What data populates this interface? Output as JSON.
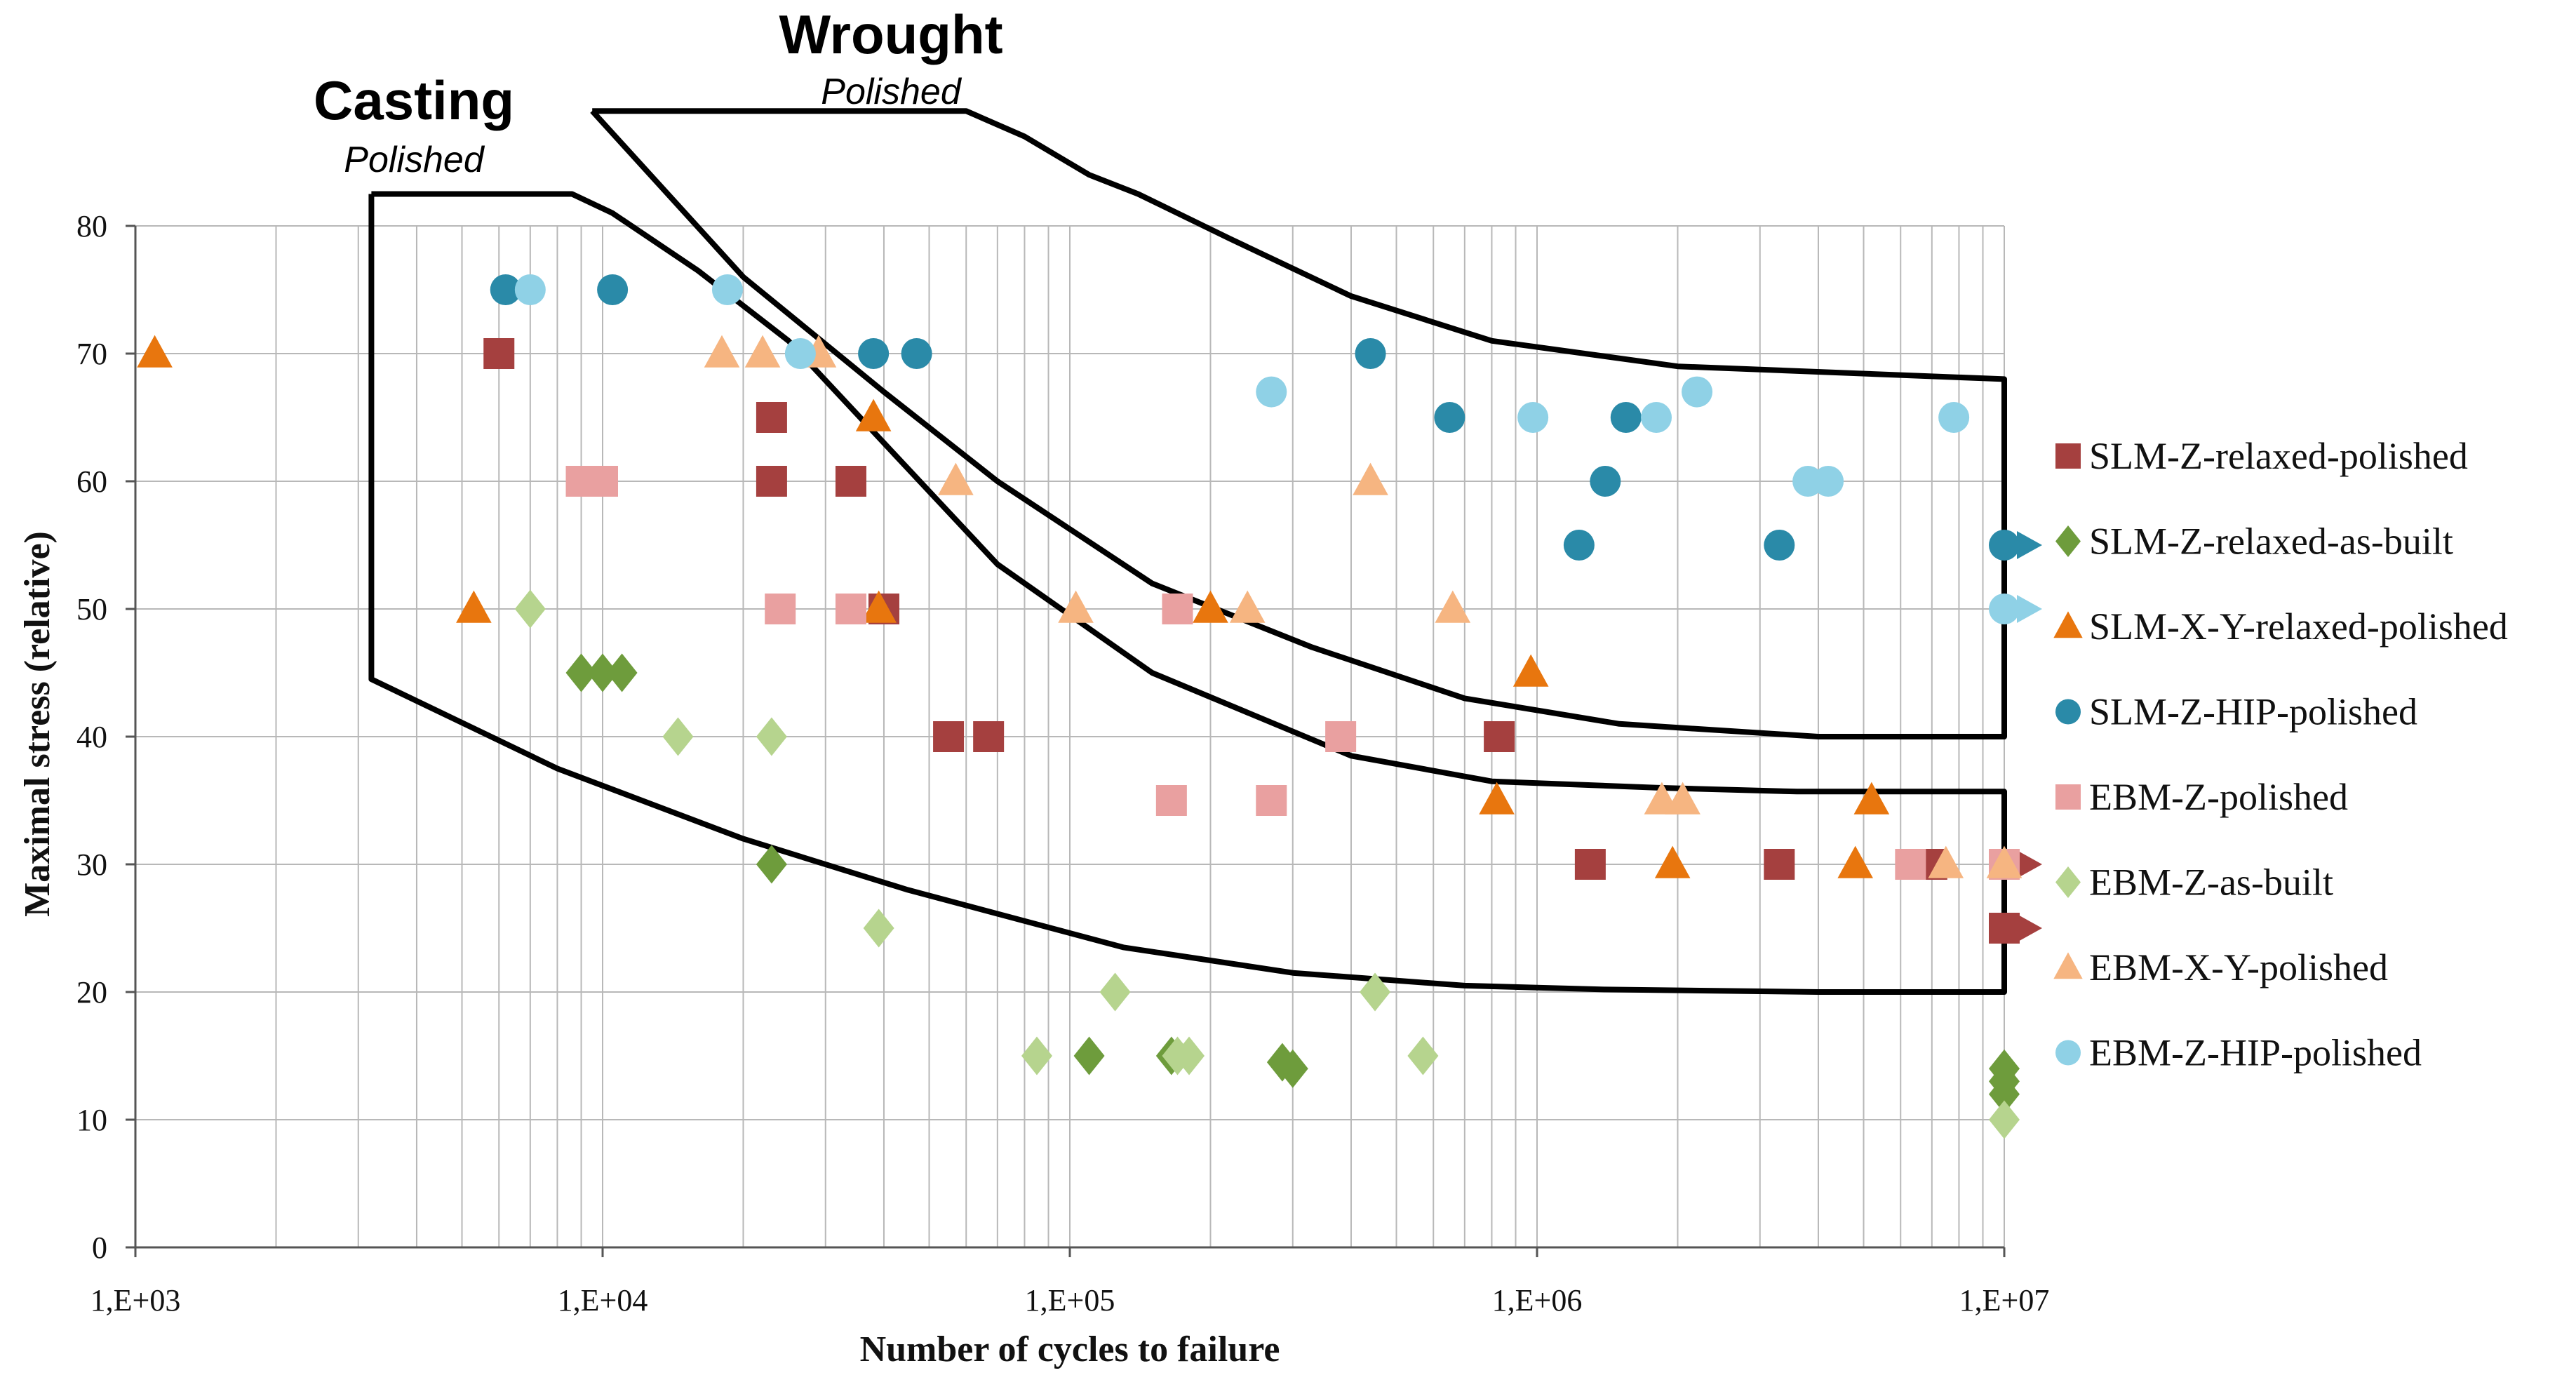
{
  "chart_data": {
    "type": "scatter",
    "title": "",
    "xlabel": "Number of cycles to failure",
    "ylabel": "Maximal stress (relative)",
    "x_scale": "log",
    "xlim": [
      1000,
      10000000
    ],
    "ylim": [
      0,
      80
    ],
    "x_ticks": [
      "1,E+03",
      "1,E+04",
      "1,E+05",
      "1,E+06",
      "1,E+07"
    ],
    "y_ticks": [
      "0",
      "10",
      "20",
      "30",
      "40",
      "50",
      "60",
      "70",
      "80"
    ],
    "grid": true,
    "legend_position": "right",
    "series": [
      {
        "name": "SLM-Z-relaxed-polished",
        "marker": "square",
        "color": "#a5403f",
        "points": [
          [
            6000,
            70
          ],
          [
            23000,
            65
          ],
          [
            23000,
            60
          ],
          [
            34000,
            60
          ],
          [
            40000,
            50
          ],
          [
            55000,
            40
          ],
          [
            67000,
            40
          ],
          [
            830000,
            40
          ],
          [
            1300000,
            30
          ],
          [
            3300000,
            30
          ],
          [
            7000000,
            30
          ],
          [
            10000000,
            30
          ],
          [
            10000000,
            25
          ]
        ],
        "runouts": [
          [
            10000000,
            30
          ],
          [
            10000000,
            25
          ]
        ]
      },
      {
        "name": "SLM-Z-relaxed-as-built",
        "marker": "diamond",
        "color": "#6e9c3c",
        "points": [
          [
            9000,
            45
          ],
          [
            10000,
            45
          ],
          [
            11000,
            45
          ],
          [
            23000,
            30
          ],
          [
            110000,
            15
          ],
          [
            165000,
            15
          ],
          [
            285000,
            14.5
          ],
          [
            300000,
            14
          ],
          [
            10000000,
            14
          ],
          [
            10000000,
            13
          ],
          [
            10000000,
            12
          ]
        ],
        "runouts": []
      },
      {
        "name": "SLM-X-Y-relaxed-polished",
        "marker": "triangle",
        "color": "#e8760e",
        "points": [
          [
            1100,
            70
          ],
          [
            5300,
            50
          ],
          [
            38000,
            65
          ],
          [
            39000,
            50
          ],
          [
            200000,
            50
          ],
          [
            820000,
            35
          ],
          [
            970000,
            45
          ],
          [
            1950000,
            30
          ],
          [
            4800000,
            30
          ],
          [
            5200000,
            35
          ]
        ],
        "runouts": []
      },
      {
        "name": "SLM-Z-HIP-polished",
        "marker": "circle",
        "color": "#2a8aa8",
        "points": [
          [
            6200,
            75
          ],
          [
            10500,
            75
          ],
          [
            38000,
            70
          ],
          [
            47000,
            70
          ],
          [
            440000,
            70
          ],
          [
            650000,
            65
          ],
          [
            1230000,
            55
          ],
          [
            1400000,
            60
          ],
          [
            1550000,
            65
          ],
          [
            3300000,
            55
          ],
          [
            10000000,
            55
          ]
        ],
        "runouts": [
          [
            10000000,
            55
          ]
        ]
      },
      {
        "name": "EBM-Z-polished",
        "marker": "square",
        "color": "#e9a0a0",
        "points": [
          [
            9000,
            60
          ],
          [
            10000,
            60
          ],
          [
            24000,
            50
          ],
          [
            34000,
            50
          ],
          [
            165000,
            35
          ],
          [
            170000,
            50
          ],
          [
            270000,
            35
          ],
          [
            380000,
            40
          ],
          [
            6300000,
            30
          ],
          [
            10000000,
            30
          ]
        ],
        "runouts": []
      },
      {
        "name": "EBM-Z-as-built",
        "marker": "diamond",
        "color": "#b6d48e",
        "points": [
          [
            7000,
            50
          ],
          [
            14500,
            40
          ],
          [
            23000,
            40
          ],
          [
            39000,
            25
          ],
          [
            85000,
            15
          ],
          [
            125000,
            20
          ],
          [
            170000,
            15
          ],
          [
            180000,
            15
          ],
          [
            450000,
            20
          ],
          [
            570000,
            15
          ],
          [
            10000000,
            10
          ]
        ],
        "runouts": []
      },
      {
        "name": "EBM-X-Y-polished",
        "marker": "triangle",
        "color": "#f6b581",
        "points": [
          [
            18000,
            70
          ],
          [
            22000,
            70
          ],
          [
            29000,
            70
          ],
          [
            57000,
            60
          ],
          [
            103000,
            50
          ],
          [
            240000,
            50
          ],
          [
            440000,
            60
          ],
          [
            660000,
            50
          ],
          [
            1850000,
            35
          ],
          [
            2050000,
            35
          ],
          [
            7500000,
            30
          ],
          [
            10000000,
            30
          ]
        ],
        "runouts": []
      },
      {
        "name": "EBM-Z-HIP-polished",
        "marker": "circle",
        "color": "#8fd1e6",
        "points": [
          [
            7000,
            75
          ],
          [
            18500,
            75
          ],
          [
            26500,
            70
          ],
          [
            270000,
            67
          ],
          [
            980000,
            65
          ],
          [
            1800000,
            65
          ],
          [
            2200000,
            67
          ],
          [
            3800000,
            60
          ],
          [
            4200000,
            60
          ],
          [
            7800000,
            65
          ],
          [
            10000000,
            50
          ]
        ],
        "runouts": [
          [
            10000000,
            50
          ]
        ]
      }
    ],
    "envelopes": [
      {
        "title": "Casting",
        "subtitle": "Polished",
        "outline": [
          [
            3200,
            82.5
          ],
          [
            8600,
            82.5
          ],
          [
            10500,
            81
          ],
          [
            16000,
            76.5
          ],
          [
            25000,
            71
          ],
          [
            40000,
            63
          ],
          [
            70000,
            53.5
          ],
          [
            150000,
            45
          ],
          [
            400000,
            38.5
          ],
          [
            800000,
            36.5
          ],
          [
            1800000,
            36
          ],
          [
            3600000,
            35.7
          ],
          [
            10000000,
            35.7
          ],
          [
            10000000,
            20
          ],
          [
            4000000,
            20
          ],
          [
            1400000,
            20.2
          ],
          [
            700000,
            20.5
          ],
          [
            300000,
            21.5
          ],
          [
            130000,
            23.5
          ],
          [
            45000,
            28
          ],
          [
            20000,
            32
          ],
          [
            8000,
            37.5
          ],
          [
            3200,
            44.5
          ],
          [
            3200,
            82.5
          ]
        ]
      },
      {
        "title": "Wrought",
        "subtitle": "Polished",
        "outline": [
          [
            9500,
            89
          ],
          [
            60000,
            89
          ],
          [
            80000,
            87
          ],
          [
            110000,
            84
          ],
          [
            140000,
            82.5
          ],
          [
            220000,
            79
          ],
          [
            400000,
            74.5
          ],
          [
            800000,
            71
          ],
          [
            2000000,
            69
          ],
          [
            10000000,
            68
          ],
          [
            10000000,
            40
          ],
          [
            4000000,
            40
          ],
          [
            1500000,
            41
          ],
          [
            700000,
            43
          ],
          [
            330000,
            47
          ],
          [
            150000,
            52
          ],
          [
            70000,
            60
          ],
          [
            40000,
            67
          ],
          [
            20000,
            76
          ],
          [
            9500,
            89
          ]
        ]
      }
    ]
  }
}
